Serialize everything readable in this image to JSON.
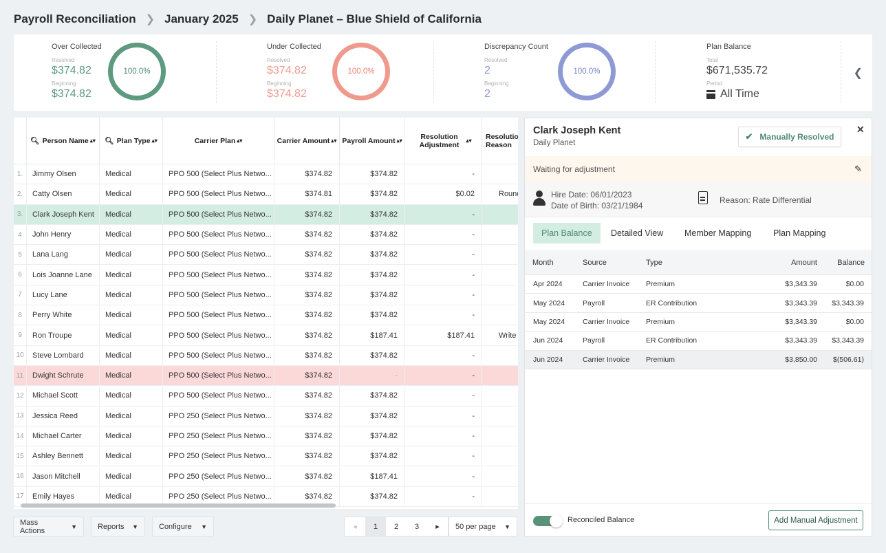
{
  "breadcrumb": [
    "Payroll Reconciliation",
    "January 2025",
    "Daily Planet – Blue Shield of California"
  ],
  "stats": [
    {
      "title": "Over Collected",
      "label1": "Resolved",
      "value1": "$374.82",
      "label2": "Beginning",
      "value2": "$374.82",
      "percent": "100.0%",
      "color": "#5d9a80"
    },
    {
      "title": "Under Collected",
      "label1": "Resolved",
      "value1": "$374.82",
      "label2": "Beginning",
      "value2": "$374.82",
      "percent": "100.0%",
      "color": "#ef9a8c"
    },
    {
      "title": "Discrepancy Count",
      "label1": "Resolved",
      "value1": "2",
      "label2": "Beginning",
      "value2": "2",
      "percent": "100.0%",
      "color": "#8e9ad6"
    },
    {
      "title": "Plan Balance",
      "label1": "Total",
      "value1": "$671,535.72",
      "label2": "Period",
      "value2": "All Time"
    }
  ],
  "grid": {
    "headers": [
      "Person Name",
      "Plan Type",
      "Carrier Plan",
      "Carrier Amount",
      "Payroll Amount",
      "Resolution Adjustment",
      "Resolution Reason"
    ],
    "rows": [
      [
        "1.",
        "Jimmy Olsen",
        "Medical",
        "PPO 500 (Select Plus Netwo...",
        "$374.82",
        "$374.82",
        "-",
        ""
      ],
      [
        "2.",
        "Catty Olsen",
        "Medical",
        "PPO 500 (Select Plus Netwo...",
        "$374.81",
        "$374.82",
        "$0.02",
        "Round"
      ],
      [
        "3.",
        "Clark Joseph Kent",
        "Medical",
        "PPO 500 (Select Plus Netwo...",
        "$374.82",
        "$374.82",
        "-",
        ""
      ],
      [
        "4",
        "John Henry",
        "Medical",
        "PPO 500 (Select Plus Netwo...",
        "$374.82",
        "$374.82",
        "-",
        ""
      ],
      [
        "5",
        "Lana Lang",
        "Medical",
        "PPO 500 (Select Plus Netwo...",
        "$374.82",
        "$374.82",
        "-",
        ""
      ],
      [
        "6",
        "Lois Joanne Lane",
        "Medical",
        "PPO 500 (Select Plus Netwo...",
        "$374.82",
        "$374.82",
        "-",
        ""
      ],
      [
        "7",
        "Lucy Lane",
        "Medical",
        "PPO 500 (Select Plus Netwo...",
        "$374.82",
        "$374.82",
        "-",
        ""
      ],
      [
        "8",
        "Perry White",
        "Medical",
        "PPO 500 (Select Plus Netwo...",
        "$374.82",
        "$374.82",
        "-",
        ""
      ],
      [
        "9",
        "Ron Troupe",
        "Medical",
        "PPO 500 (Select Plus Netwo...",
        "$374.82",
        "$187.41",
        "$187.41",
        "Write"
      ],
      [
        "10",
        "Steve Lombard",
        "Medical",
        "PPO 500 (Select Plus Netwo...",
        "$374.82",
        "$374.82",
        "-",
        ""
      ],
      [
        "11",
        "Dwight Schrute",
        "Medical",
        "PPO 500 (Select Plus Netwo...",
        "$374.82",
        "-",
        "-",
        ""
      ],
      [
        "12",
        "Michael Scott",
        "Medical",
        "PPO 500 (Select Plus Netwo...",
        "$374.82",
        "$374.82",
        "-",
        ""
      ],
      [
        "13",
        "Jessica Reed",
        "Medical",
        "PPO 250 (Select Plus Netwo...",
        "$374.82",
        "$374.82",
        "-",
        ""
      ],
      [
        "14",
        "Michael Carter",
        "Medical",
        "PPO 250 (Select Plus Netwo...",
        "$374.82",
        "$374.82",
        "-",
        ""
      ],
      [
        "15",
        "Ashley Bennett",
        "Medical",
        "PPO 250 (Select Plus Netwo...",
        "$374.82",
        "$374.82",
        "-",
        ""
      ],
      [
        "16",
        "Jason Mitchell",
        "Medical",
        "PPO 250 (Select Plus Netwo...",
        "$374.82",
        "$187.41",
        "-",
        ""
      ],
      [
        "17",
        "Emily Hayes",
        "Medical",
        "PPO 250 (Select Plus Netwo...",
        "$374.82",
        "$374.82",
        "-",
        ""
      ]
    ]
  },
  "toolbar": {
    "mass_actions": "Mass Actions",
    "reports": "Reports",
    "configure": "Configure"
  },
  "pagination": {
    "pages": [
      "1",
      "2",
      "3"
    ],
    "current": "1",
    "per_page": "50 per page"
  },
  "detail": {
    "name": "Clark Joseph Kent",
    "company": "Daily Planet",
    "status_button": "Manually Resolved",
    "waiting": "Waiting for adjustment",
    "hire_date": "Hire Date: 06/01/2023",
    "dob": "Date of Birth: 03/21/1984",
    "reason": "Reason: Rate Differential",
    "tabs": [
      "Plan Balance",
      "Detailed View",
      "Member Mapping",
      "Plan Mapping"
    ],
    "table_headers": [
      "Month",
      "Source",
      "Type",
      "Amount",
      "Balance"
    ],
    "table_rows": [
      [
        "Apr 2024",
        "Carrier Invoice",
        "Premium",
        "$3,343.39",
        "$0.00"
      ],
      [
        "May 2024",
        "Payroll",
        "ER Contribution",
        "$3,343.39",
        "$3,343.39"
      ],
      [
        "May 2024",
        "Carrier Invoice",
        "Premium",
        "$3,343.39",
        "$0.00"
      ],
      [
        "Jun 2024",
        "Payroll",
        "ER Contribution",
        "$3,343.39",
        "$3,343.39"
      ],
      [
        "Jun 2024",
        "Carrier Invoice",
        "Premium",
        "$3,850.00",
        "$(506.61)"
      ]
    ],
    "toggle_label": "Reconciled Balance",
    "add_button": "Add Manual Adjustment"
  },
  "colors": {
    "accent": "#4e8a72",
    "selected_row": "#d4ede3",
    "error_row": "#fbd9d9",
    "waiting_bg": "#fdf7ee"
  }
}
